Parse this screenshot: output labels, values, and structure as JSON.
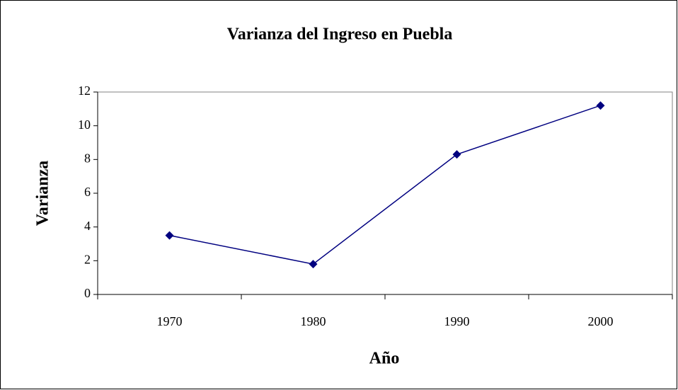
{
  "chart_data": {
    "type": "line",
    "title": "Varianza del Ingreso en Puebla",
    "x_label": "Año",
    "y_label": "Varianza",
    "categories": [
      "1970",
      "1980",
      "1990",
      "2000"
    ],
    "series": [
      {
        "name": "Varianza",
        "color": "#000080",
        "values": [
          3.5,
          1.8,
          8.3,
          11.2
        ]
      }
    ],
    "ylim": [
      0,
      12
    ],
    "yticks": [
      0,
      2,
      4,
      6,
      8,
      10,
      12
    ],
    "grid": false,
    "legend": false
  }
}
